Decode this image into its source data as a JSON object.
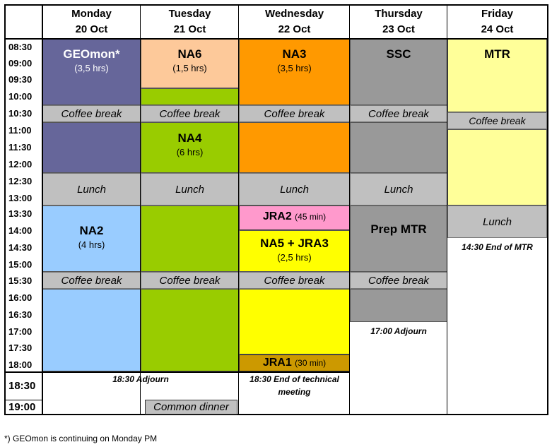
{
  "days": [
    {
      "name": "Monday",
      "date": "20 Oct"
    },
    {
      "name": "Tuesday",
      "date": "21 Oct"
    },
    {
      "name": "Wednesday",
      "date": "22 Oct"
    },
    {
      "name": "Thursday",
      "date": "23 Oct"
    },
    {
      "name": "Friday",
      "date": "24 Oct"
    }
  ],
  "times": [
    "08:30",
    "09:00",
    "09:30",
    "10:00",
    "10:30",
    "11:00",
    "11:30",
    "12:00",
    "12:30",
    "13:00",
    "13:30",
    "14:00",
    "14:30",
    "15:00",
    "15:30",
    "16:00",
    "16:30",
    "17:00",
    "17:30",
    "18:00",
    "18:30",
    "19:00"
  ],
  "break_label": "Coffee break",
  "lunch_label": "Lunch",
  "sessions": {
    "geomon": {
      "title": "GEOmon*",
      "duration": "(3,5 hrs)"
    },
    "na6": {
      "title": "NA6",
      "duration": "(1,5 hrs)"
    },
    "na3": {
      "title": "NA3",
      "duration": "(3,5 hrs)"
    },
    "ssc": {
      "title": "SSC"
    },
    "mtr": {
      "title": "MTR"
    },
    "na4": {
      "title": "NA4",
      "duration": "(6 hrs)"
    },
    "na2": {
      "title": "NA2",
      "duration": "(4 hrs)"
    },
    "jra2": {
      "title": "JRA2",
      "duration": "(45 min)"
    },
    "na5jra3": {
      "title": "NA5 + JRA3",
      "duration": "(2,5 hrs)"
    },
    "prep_mtr": {
      "title": "Prep MTR"
    },
    "jra1": {
      "title": "JRA1",
      "duration": "(30 min)"
    }
  },
  "notes": {
    "mon_adjourn": "18:30 Adjourn",
    "wed_end": "18:30 End of technical meeting",
    "thu_adjourn": "17:00 Adjourn",
    "fri_end": "14:30 End of MTR",
    "dinner": "Common dinner"
  },
  "footnote": "*) GEOmon is continuing on Monday PM",
  "colors": {
    "geomon": "#66669a",
    "na6": "#fdc99a",
    "na3": "#ff9900",
    "ssc": "#999999",
    "mtr": "#ffff99",
    "na4": "#99cc00",
    "na2": "#99ccff",
    "jra2": "#ff99cc",
    "na5jra3": "#ffff00",
    "prep_mtr": "#999999",
    "jra1": "#cc9900",
    "break": "#c0c0c0"
  }
}
